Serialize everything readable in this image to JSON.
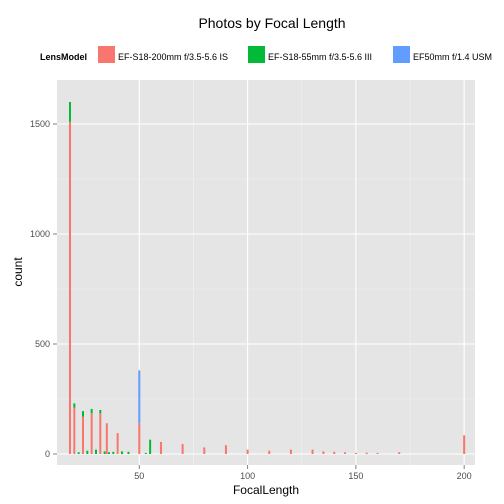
{
  "chart_data": {
    "type": "bar",
    "stacked": true,
    "title": "Photos by Focal Length",
    "xlabel": "FocalLength",
    "ylabel": "count",
    "xlim": [
      12,
      205
    ],
    "ylim": [
      -50,
      1700
    ],
    "x_ticks": [
      50,
      100,
      150,
      200
    ],
    "y_ticks": [
      0,
      500,
      1000,
      1500
    ],
    "grid": true,
    "legend_position": "top",
    "legend_title": "LensModel",
    "series": [
      {
        "name": "EF-S18-200mm f/3.5-5.6 IS",
        "color": "#F8766D",
        "points": [
          {
            "x": 18,
            "y": 1510
          },
          {
            "x": 20,
            "y": 210
          },
          {
            "x": 24,
            "y": 170
          },
          {
            "x": 28,
            "y": 185
          },
          {
            "x": 32,
            "y": 185
          },
          {
            "x": 35,
            "y": 140
          },
          {
            "x": 40,
            "y": 95
          },
          {
            "x": 50,
            "y": 140
          },
          {
            "x": 60,
            "y": 55
          },
          {
            "x": 70,
            "y": 45
          },
          {
            "x": 80,
            "y": 30
          },
          {
            "x": 90,
            "y": 40
          },
          {
            "x": 100,
            "y": 20
          },
          {
            "x": 110,
            "y": 15
          },
          {
            "x": 120,
            "y": 20
          },
          {
            "x": 130,
            "y": 20
          },
          {
            "x": 135,
            "y": 12
          },
          {
            "x": 140,
            "y": 10
          },
          {
            "x": 145,
            "y": 8
          },
          {
            "x": 150,
            "y": 5
          },
          {
            "x": 155,
            "y": 6
          },
          {
            "x": 160,
            "y": 5
          },
          {
            "x": 170,
            "y": 8
          },
          {
            "x": 200,
            "y": 85
          }
        ]
      },
      {
        "name": "EF-S18-55mm f/3.5-5.6 III",
        "color": "#00BA38",
        "points": [
          {
            "x": 18,
            "y": 90
          },
          {
            "x": 20,
            "y": 20
          },
          {
            "x": 22,
            "y": 8
          },
          {
            "x": 24,
            "y": 25
          },
          {
            "x": 26,
            "y": 15
          },
          {
            "x": 28,
            "y": 20
          },
          {
            "x": 30,
            "y": 20
          },
          {
            "x": 32,
            "y": 15
          },
          {
            "x": 34,
            "y": 12
          },
          {
            "x": 36,
            "y": 8
          },
          {
            "x": 38,
            "y": 10
          },
          {
            "x": 42,
            "y": 12
          },
          {
            "x": 45,
            "y": 10
          },
          {
            "x": 53,
            "y": 5
          },
          {
            "x": 55,
            "y": 65
          }
        ]
      },
      {
        "name": "EF50mm f/1.4 USM",
        "color": "#619CFF",
        "points": [
          {
            "x": 50,
            "y": 240
          }
        ]
      }
    ]
  }
}
